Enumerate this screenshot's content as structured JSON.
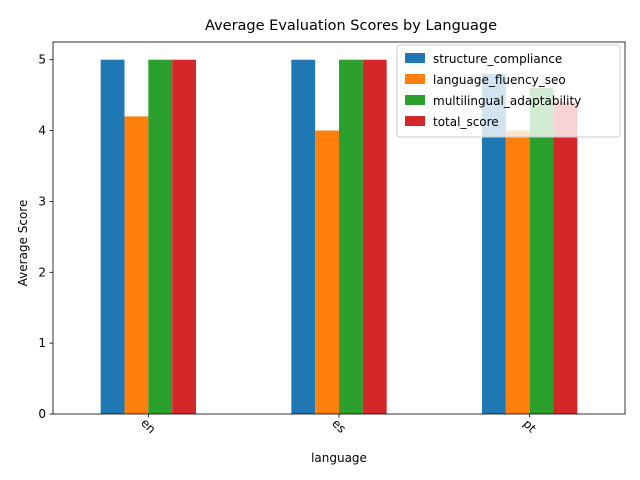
{
  "chart_data": {
    "type": "bar",
    "title": "Average Evaluation Scores by Language",
    "xlabel": "language",
    "ylabel": "Average Score",
    "categories": [
      "en",
      "es",
      "pt"
    ],
    "series": [
      {
        "name": "structure_compliance",
        "color": "#1f77b4",
        "values": [
          5.0,
          5.0,
          4.8
        ]
      },
      {
        "name": "language_fluency_seo",
        "color": "#ff7f0e",
        "values": [
          4.2,
          4.0,
          4.0
        ]
      },
      {
        "name": "multilingual_adaptability",
        "color": "#2ca02c",
        "values": [
          5.0,
          5.0,
          4.6
        ]
      },
      {
        "name": "total_score",
        "color": "#d62728",
        "values": [
          5.0,
          5.0,
          4.4
        ]
      }
    ],
    "ylim": [
      0,
      5.25
    ],
    "yticks": [
      0,
      1,
      2,
      3,
      4,
      5
    ],
    "grid": false,
    "legend_position": "top-right",
    "x_tick_rotation": 45
  }
}
